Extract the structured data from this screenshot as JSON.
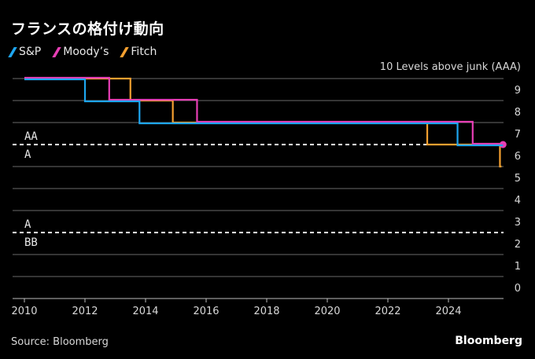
{
  "chart_data": {
    "type": "line",
    "title": "フランスの格付け動向",
    "ylabel": "10 Levels above junk (AAA)",
    "xlabel": "",
    "xlim": [
      2010,
      2026.5
    ],
    "ylim": [
      0,
      10
    ],
    "x_ticks": [
      2010,
      2012,
      2014,
      2016,
      2018,
      2020,
      2022,
      2024
    ],
    "x_tick_labels": [
      "2010",
      "2012",
      "2014",
      "2016",
      "2018",
      "2020",
      "2022",
      "2024"
    ],
    "y_ticks": [
      0,
      1,
      2,
      3,
      4,
      5,
      6,
      7,
      8,
      9
    ],
    "y_tick_labels": [
      "0",
      "1",
      "2",
      "3",
      "4",
      "5",
      "6",
      "7",
      "8",
      "9"
    ],
    "grid": true,
    "legend_position": "top-left",
    "series": [
      {
        "name": "S&P",
        "color": "#1ea6f0",
        "steps": [
          [
            2010.0,
            10
          ],
          [
            2012.0,
            9
          ],
          [
            2013.8,
            8
          ],
          [
            2024.3,
            7
          ],
          [
            2025.8,
            7
          ]
        ]
      },
      {
        "name": "Moody's",
        "color": "#e83fb6",
        "steps": [
          [
            2010.0,
            10
          ],
          [
            2012.8,
            9
          ],
          [
            2015.7,
            8
          ],
          [
            2024.8,
            7
          ],
          [
            2025.8,
            7
          ]
        ],
        "end_marker": true
      },
      {
        "name": "Fitch",
        "color": "#f5a030",
        "steps": [
          [
            2010.0,
            10
          ],
          [
            2013.5,
            9
          ],
          [
            2014.9,
            8
          ],
          [
            2023.3,
            7
          ],
          [
            2025.7,
            6
          ],
          [
            2025.75,
            6
          ]
        ]
      }
    ],
    "annotations": [
      {
        "type": "threshold",
        "y": 7,
        "label_above": "AA",
        "label_below": "A",
        "style": "dashed"
      },
      {
        "type": "threshold",
        "y": 3,
        "label_above": "A",
        "label_below": "BB",
        "style": "dashed"
      }
    ]
  },
  "legend": [
    {
      "label": "S&P",
      "color": "#1ea6f0"
    },
    {
      "label": "Moody’s",
      "color": "#e83fb6"
    },
    {
      "label": "Fitch",
      "color": "#f5a030"
    }
  ],
  "footer": {
    "source": "Source: Bloomberg",
    "brand": "Bloomberg"
  }
}
